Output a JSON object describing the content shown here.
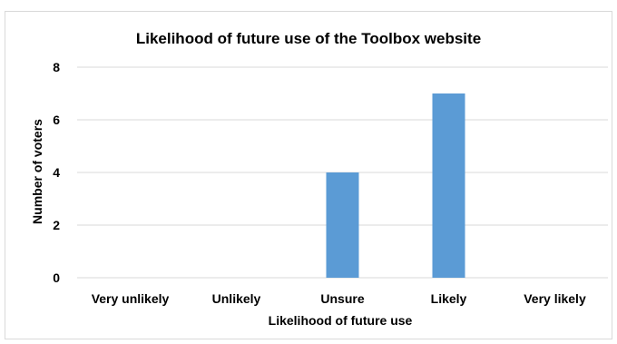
{
  "chart_data": {
    "type": "bar",
    "title": "Likelihood of future use of the Toolbox website",
    "xlabel": "Likelihood of future use",
    "ylabel": "Number of voters",
    "categories": [
      "Very unlikely",
      "Unlikely",
      "Unsure",
      "Likely",
      "Very likely"
    ],
    "values": [
      0,
      0,
      4,
      7,
      0
    ],
    "ylim": [
      0,
      8
    ],
    "yticks": [
      "0",
      "2",
      "4",
      "6",
      "8"
    ],
    "grid": true,
    "legend": "none",
    "bar_color": "#5b9bd5",
    "grid_color": "#d9d9d9"
  }
}
